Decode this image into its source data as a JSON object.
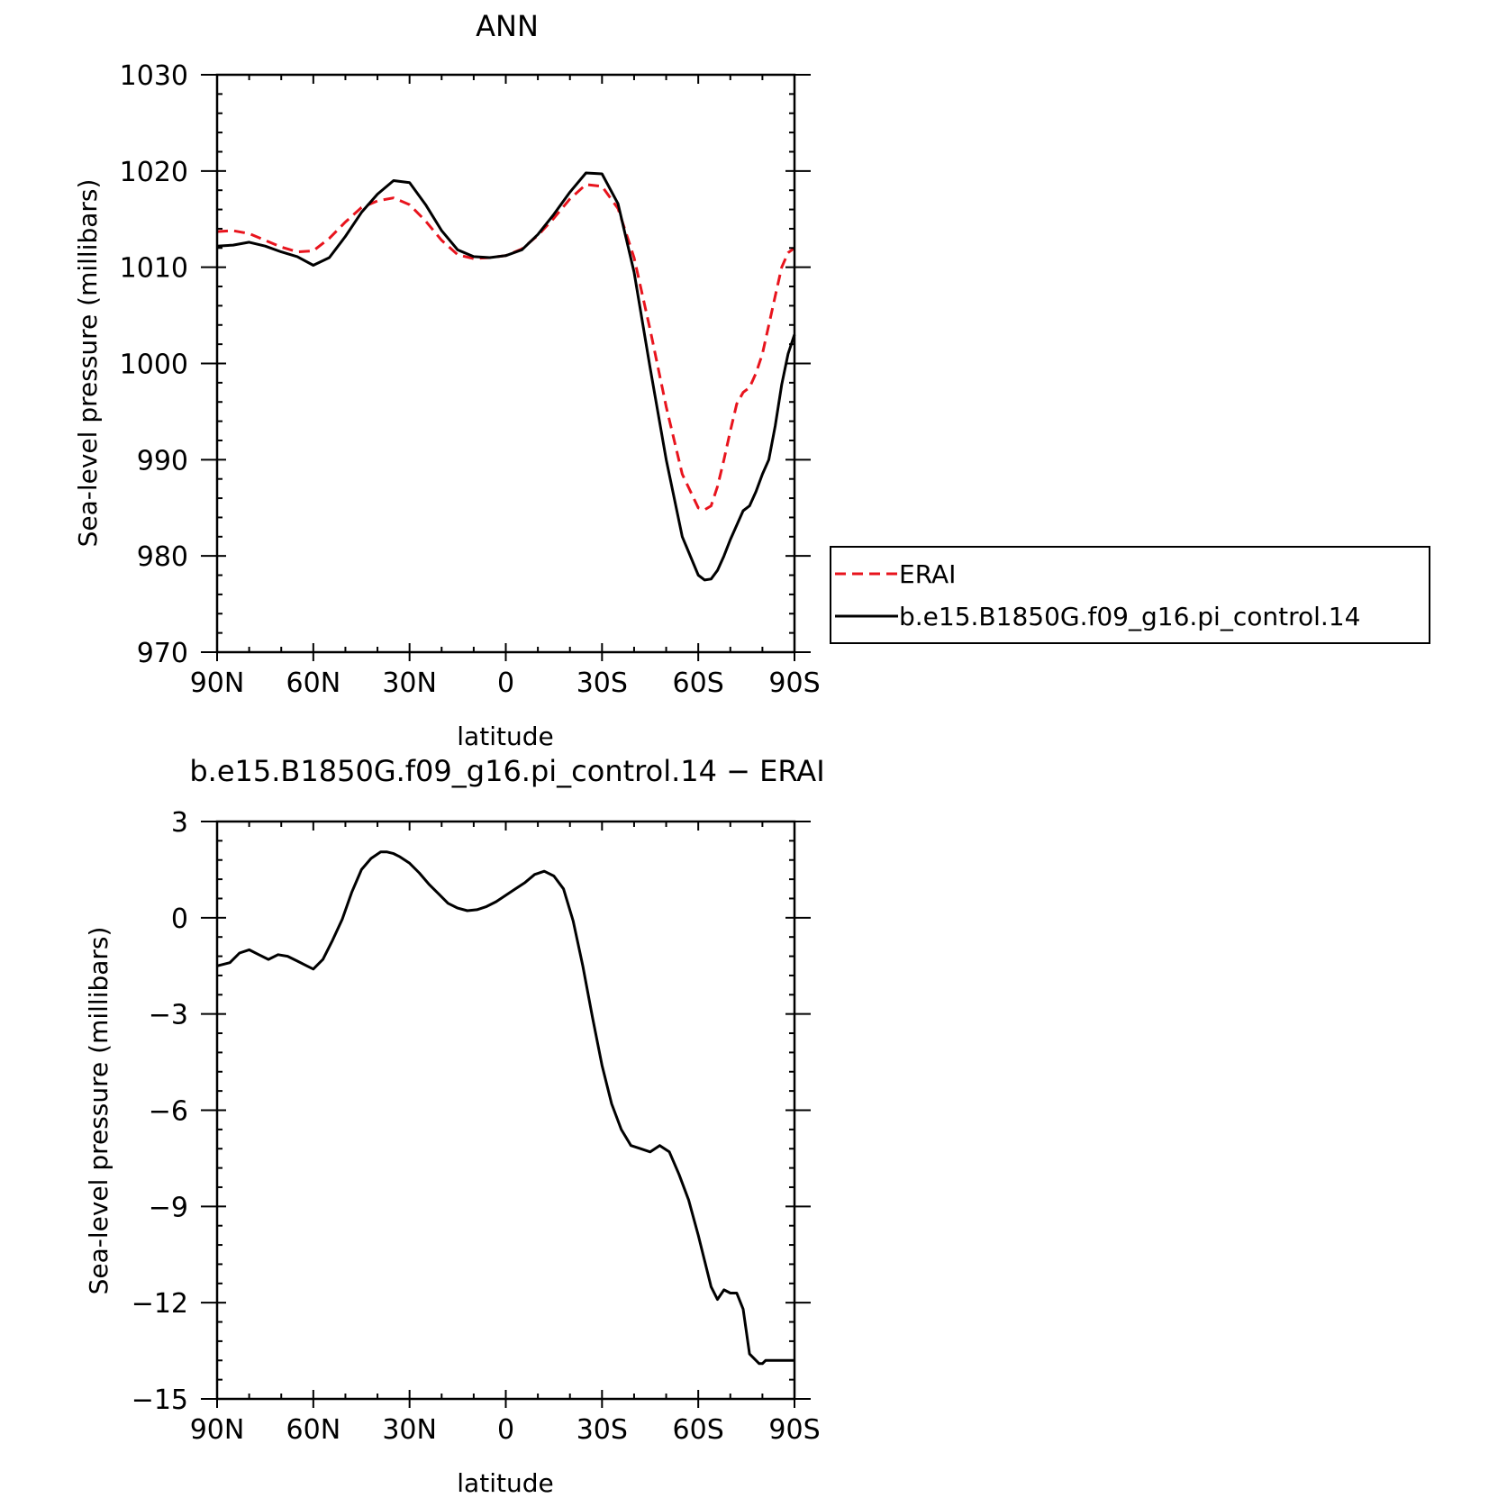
{
  "chart_data": [
    {
      "type": "line",
      "title": "ANN",
      "xlabel": "latitude",
      "ylabel": "Sea-level pressure (millibars)",
      "xlim": [
        90,
        -90
      ],
      "ylim": [
        970,
        1030
      ],
      "x_ticks": [
        90,
        60,
        30,
        0,
        -30,
        -60,
        -90
      ],
      "x_tick_labels": [
        "90N",
        "60N",
        "30N",
        "0",
        "30S",
        "60S",
        "90S"
      ],
      "y_ticks": [
        970,
        980,
        990,
        1000,
        1010,
        1020,
        1030
      ],
      "y_tick_labels": [
        "970",
        "980",
        "990",
        "1000",
        "1010",
        "1020",
        "1030"
      ],
      "legend": "right",
      "grid": false,
      "series": [
        {
          "name": "ERAI",
          "color": "#e8141d",
          "style": "dashed",
          "x": [
            90,
            85,
            80,
            75,
            70,
            65,
            60,
            55,
            50,
            45,
            40,
            35,
            30,
            25,
            20,
            15,
            10,
            5,
            0,
            -5,
            -10,
            -15,
            -20,
            -25,
            -30,
            -35,
            -40,
            -45,
            -50,
            -55,
            -60,
            -62,
            -64,
            -66,
            -68,
            -70,
            -72,
            -74,
            -76,
            -78,
            -80,
            -82,
            -84,
            -86,
            -88,
            -90
          ],
          "values": [
            1013.7,
            1013.8,
            1013.5,
            1012.8,
            1012.1,
            1011.6,
            1011.7,
            1013,
            1014.7,
            1016.2,
            1016.9,
            1017.2,
            1016.5,
            1014.8,
            1012.8,
            1011.3,
            1010.9,
            1011,
            1011.2,
            1011.9,
            1013.3,
            1015.1,
            1017.1,
            1018.6,
            1018.4,
            1016.1,
            1011,
            1003.5,
            995.5,
            988.5,
            985,
            984.8,
            985.2,
            987.2,
            990,
            993,
            995.8,
            997,
            997.5,
            999,
            1001,
            1004,
            1007,
            1010,
            1011.5,
            1012
          ]
        },
        {
          "name": "b.e15.B1850G.f09_g16.pi_control.14",
          "color": "#000000",
          "style": "solid",
          "x": [
            90,
            85,
            80,
            75,
            70,
            65,
            60,
            55,
            50,
            45,
            40,
            35,
            30,
            25,
            20,
            15,
            10,
            5,
            0,
            -5,
            -10,
            -15,
            -20,
            -25,
            -30,
            -35,
            -40,
            -45,
            -50,
            -55,
            -60,
            -62,
            -64,
            -66,
            -68,
            -70,
            -72,
            -74,
            -76,
            -78,
            -80,
            -82,
            -84,
            -86,
            -88,
            -90
          ],
          "values": [
            1012.2,
            1012.3,
            1012.6,
            1012.2,
            1011.6,
            1011.1,
            1010.2,
            1011,
            1013.2,
            1015.7,
            1017.6,
            1019,
            1018.8,
            1016.5,
            1013.8,
            1011.8,
            1011.1,
            1011,
            1011.2,
            1011.8,
            1013.4,
            1015.5,
            1017.8,
            1019.8,
            1019.7,
            1016.6,
            1009.5,
            999.5,
            990,
            982,
            978,
            977.5,
            977.6,
            978.5,
            980,
            981.7,
            983.2,
            984.7,
            985.2,
            986.7,
            988.5,
            990,
            993.5,
            997.8,
            1001,
            1003
          ]
        }
      ]
    },
    {
      "type": "line",
      "title": "b.e15.B1850G.f09_g16.pi_control.14 − ERAI",
      "xlabel": "latitude",
      "ylabel": "Sea-level pressure (millibars)",
      "xlim": [
        90,
        -90
      ],
      "ylim": [
        -15,
        3
      ],
      "x_ticks": [
        90,
        60,
        30,
        0,
        -30,
        -60,
        -90
      ],
      "x_tick_labels": [
        "90N",
        "60N",
        "30N",
        "0",
        "30S",
        "60S",
        "90S"
      ],
      "y_ticks": [
        -15,
        -12,
        -9,
        -6,
        -3,
        0,
        3
      ],
      "y_tick_labels": [
        "−15",
        "−12",
        "−9",
        "−6",
        "−3",
        "0",
        "3"
      ],
      "grid": false,
      "series": [
        {
          "color": "#000000",
          "style": "solid",
          "x": [
            90,
            86,
            83,
            80,
            77,
            74,
            71,
            68,
            65,
            62,
            60,
            57,
            54,
            51,
            48,
            45,
            42,
            39,
            37,
            35,
            33,
            30,
            27,
            24,
            21,
            18,
            15,
            12,
            9,
            6,
            3,
            0,
            -3,
            -6,
            -9,
            -12,
            -15,
            -18,
            -21,
            -24,
            -27,
            -30,
            -33,
            -36,
            -39,
            -42,
            -45,
            -48,
            -51,
            -54,
            -57,
            -60,
            -62,
            -64,
            -66,
            -68,
            -70,
            -72,
            -74,
            -76,
            -78,
            -79,
            -80,
            -81,
            -82,
            -83,
            -84,
            -85,
            -86,
            -87,
            -88,
            -89,
            -90
          ],
          "values": [
            -1.5,
            -1.4,
            -1.1,
            -1,
            -1.15,
            -1.3,
            -1.15,
            -1.2,
            -1.35,
            -1.5,
            -1.6,
            -1.3,
            -0.7,
            -0.05,
            0.8,
            1.5,
            1.85,
            2.05,
            2.05,
            2,
            1.9,
            1.7,
            1.4,
            1.05,
            0.75,
            0.45,
            0.3,
            0.22,
            0.25,
            0.35,
            0.5,
            0.7,
            0.9,
            1.1,
            1.35,
            1.45,
            1.3,
            0.9,
            -0.1,
            -1.5,
            -3.1,
            -4.6,
            -5.8,
            -6.6,
            -7.1,
            -7.2,
            -7.3,
            -7.1,
            -7.3,
            -8,
            -8.8,
            -9.9,
            -10.7,
            -11.5,
            -11.9,
            -11.6,
            -11.7,
            -11.7,
            -12.2,
            -13.6,
            -13.8,
            -13.9,
            -13.9,
            -13.8,
            -13.8,
            -13.8,
            -13.8,
            -13.8,
            -13.8,
            -13.8,
            -13.8,
            -13.8,
            -13.8
          ]
        }
      ]
    }
  ]
}
